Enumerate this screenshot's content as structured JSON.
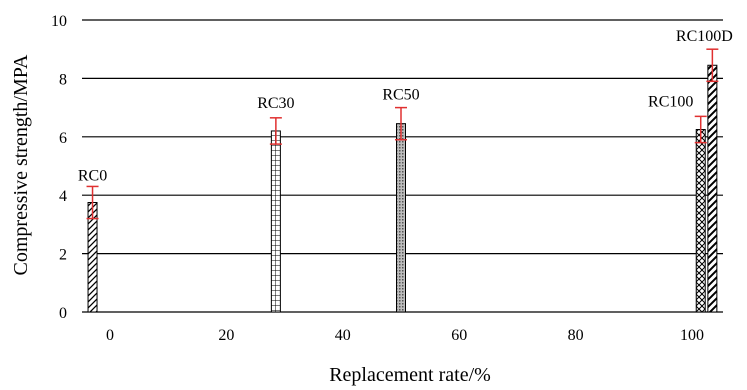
{
  "chart_data": {
    "type": "bar",
    "xlabel": "Replacement rate/%",
    "ylabel": "Compressive strength/MPA",
    "xlim": [
      -3,
      104
    ],
    "ylim": [
      0,
      10
    ],
    "x_ticks": [
      0,
      20,
      40,
      60,
      80,
      100
    ],
    "y_ticks": [
      0,
      2,
      4,
      6,
      8,
      10
    ],
    "grid": "horizontal",
    "bars": [
      {
        "label": "RC0",
        "x": -3,
        "value": 3.75,
        "error": 0.55,
        "pattern": "diagonal"
      },
      {
        "label": "RC30",
        "x": 28.5,
        "value": 6.2,
        "error": 0.45,
        "pattern": "grid"
      },
      {
        "label": "RC50",
        "x": 50,
        "value": 6.45,
        "error": 0.55,
        "pattern": "dots"
      },
      {
        "label": "RC100",
        "x": 101.5,
        "value": 6.25,
        "error": 0.45,
        "pattern": "cross-diagonal"
      },
      {
        "label": "RC100D",
        "x": 103.5,
        "value": 8.45,
        "error": 0.55,
        "pattern": "diagonal-dense"
      }
    ],
    "colors": {
      "error_bar": "#e03030",
      "bar_stroke": "#000000",
      "grid": "#000000"
    }
  }
}
